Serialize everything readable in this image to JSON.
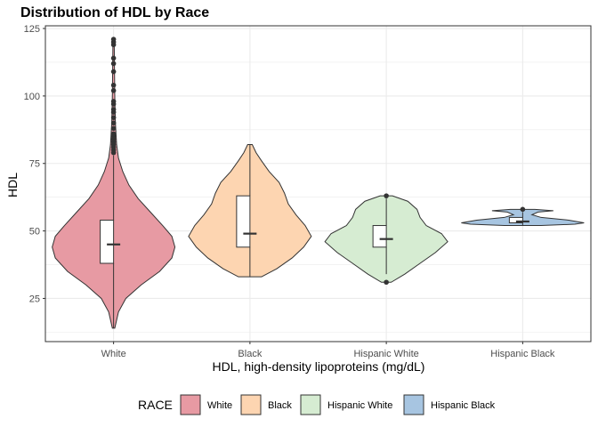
{
  "chart_data": {
    "type": "violin",
    "title": "Distribution of HDL by Race",
    "xlabel": "HDL, high-density lipoproteins (mg/dL)",
    "ylabel": "HDL",
    "ylim": [
      9,
      126
    ],
    "yticks": [
      25,
      50,
      75,
      100,
      125
    ],
    "grid": true,
    "categories": [
      "White",
      "Black",
      "Hispanic White",
      "Hispanic Black"
    ],
    "legend": {
      "title": "RACE",
      "position": "bottom",
      "entries": [
        "White",
        "Black",
        "Hispanic White",
        "Hispanic Black"
      ]
    },
    "series": [
      {
        "name": "White",
        "color": "#e79aa3",
        "min": 14,
        "max": 121,
        "box": {
          "q1": 38,
          "median": 45,
          "q3": 54,
          "whisker_low": 14,
          "whisker_high": 78
        },
        "outliers": [
          79,
          80,
          81,
          82,
          83,
          84,
          85,
          86,
          88,
          90,
          92,
          94,
          95,
          97,
          98,
          102,
          104,
          109,
          112,
          114,
          119,
          120,
          121
        ],
        "density": [
          [
            14,
            0.02
          ],
          [
            20,
            0.08
          ],
          [
            25,
            0.2
          ],
          [
            30,
            0.45
          ],
          [
            35,
            0.75
          ],
          [
            40,
            0.95
          ],
          [
            44,
            1.0
          ],
          [
            48,
            0.95
          ],
          [
            52,
            0.8
          ],
          [
            57,
            0.6
          ],
          [
            62,
            0.4
          ],
          [
            67,
            0.25
          ],
          [
            72,
            0.15
          ],
          [
            77,
            0.08
          ],
          [
            82,
            0.05
          ],
          [
            90,
            0.03
          ],
          [
            100,
            0.02
          ],
          [
            110,
            0.015
          ],
          [
            121,
            0.01
          ]
        ]
      },
      {
        "name": "Black",
        "color": "#fdd5b1",
        "min": 33,
        "max": 82,
        "box": {
          "q1": 44,
          "median": 49,
          "q3": 63,
          "whisker_low": 33,
          "whisker_high": 82
        },
        "outliers": [],
        "density": [
          [
            33,
            0.15
          ],
          [
            36,
            0.35
          ],
          [
            40,
            0.55
          ],
          [
            44,
            0.7
          ],
          [
            48,
            0.8
          ],
          [
            52,
            0.72
          ],
          [
            56,
            0.6
          ],
          [
            60,
            0.5
          ],
          [
            64,
            0.45
          ],
          [
            68,
            0.38
          ],
          [
            72,
            0.25
          ],
          [
            76,
            0.15
          ],
          [
            79,
            0.08
          ],
          [
            82,
            0.03
          ]
        ]
      },
      {
        "name": "Hispanic White",
        "color": "#d6ecd2",
        "min": 31,
        "max": 63,
        "box": {
          "q1": 44,
          "median": 47,
          "q3": 52,
          "whisker_low": 34,
          "whisker_high": 62
        },
        "outliers": [
          31,
          63
        ],
        "density": [
          [
            31,
            0.08
          ],
          [
            34,
            0.3
          ],
          [
            38,
            0.55
          ],
          [
            42,
            0.8
          ],
          [
            46,
            1.0
          ],
          [
            49,
            0.9
          ],
          [
            52,
            0.65
          ],
          [
            55,
            0.55
          ],
          [
            58,
            0.5
          ],
          [
            61,
            0.35
          ],
          [
            63,
            0.1
          ]
        ]
      },
      {
        "name": "Hispanic Black",
        "color": "#a7c5e1",
        "min": 52,
        "max": 58,
        "box": {
          "q1": 53,
          "median": 53.5,
          "q3": 55,
          "whisker_low": 52,
          "whisker_high": 57
        },
        "outliers": [
          58
        ],
        "density": [
          [
            52,
            0.3
          ],
          [
            52.5,
            0.85
          ],
          [
            53,
            1.0
          ],
          [
            54,
            0.75
          ],
          [
            55,
            0.3
          ],
          [
            56,
            0.15
          ],
          [
            57,
            0.25
          ],
          [
            57.5,
            0.5
          ],
          [
            58,
            0.2
          ]
        ]
      }
    ]
  }
}
